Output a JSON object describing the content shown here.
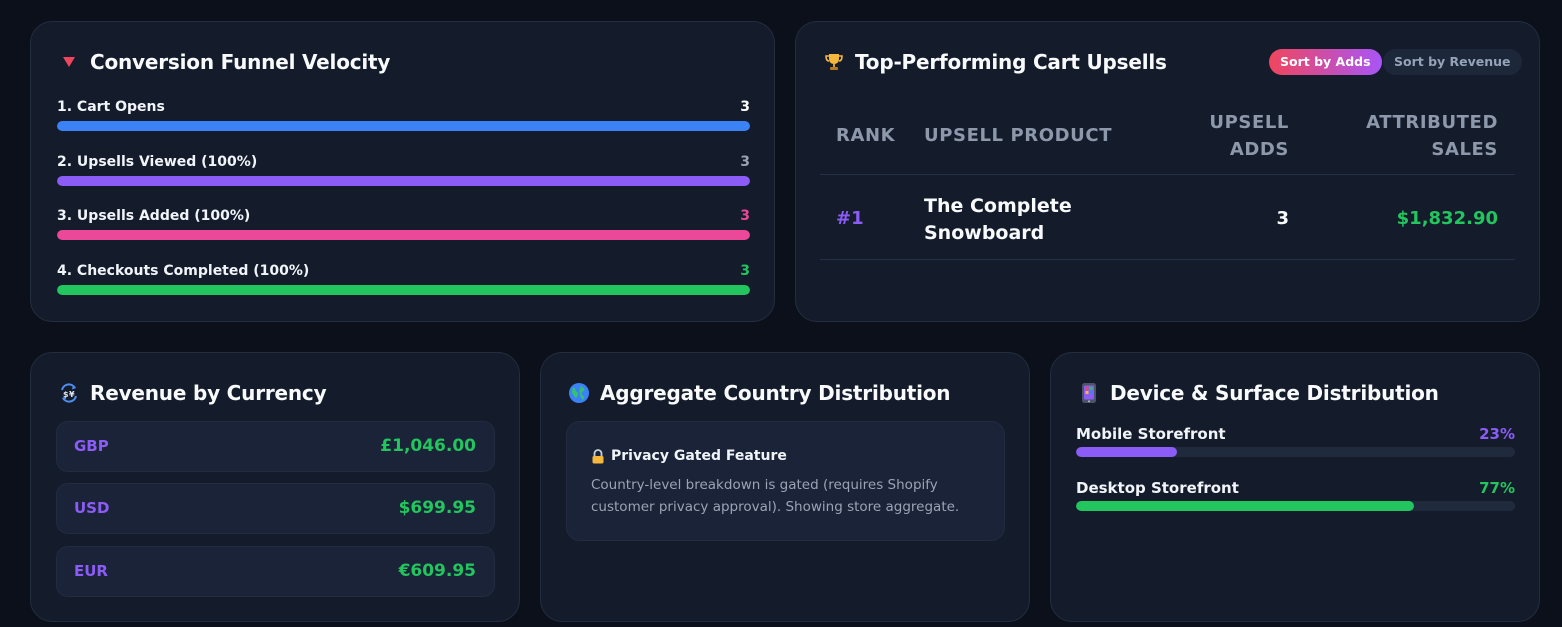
{
  "funnel": {
    "title": "Conversion Funnel Velocity",
    "icon": "triangle-down-icon",
    "steps": [
      {
        "label": "1. Cart Opens",
        "value": "3",
        "fill_fraction": 1.0,
        "color": "#3b82f6",
        "value_color": "#ffffff"
      },
      {
        "label": "2. Upsells Viewed (100%)",
        "value": "3",
        "fill_fraction": 1.0,
        "color": "#8b5cf6",
        "value_color": "#9ca3af"
      },
      {
        "label": "3. Upsells Added (100%)",
        "value": "3",
        "fill_fraction": 1.0,
        "color": "#ec4899",
        "value_color": "#ec4899"
      },
      {
        "label": "4. Checkouts Completed (100%)",
        "value": "3",
        "fill_fraction": 1.0,
        "color": "#22c55e",
        "value_color": "#22c55e"
      }
    ]
  },
  "upsells": {
    "title": "Top-Performing Cart Upsells",
    "icon": "trophy-icon",
    "sort_adds_label": "Sort by Adds",
    "sort_revenue_label": "Sort by Revenue",
    "columns": {
      "rank": "RANK",
      "product": "UPSELL PRODUCT",
      "adds_line1": "UPSELL",
      "adds_line2": "ADDS",
      "sales_line1": "ATTRIBUTED",
      "sales_line2": "SALES"
    },
    "rows": [
      {
        "rank": "#1",
        "product_line1": "The Complete",
        "product_line2": "Snowboard",
        "adds": "3",
        "sales": "$1,832.90"
      }
    ]
  },
  "currency": {
    "title": "Revenue by Currency",
    "icon": "currency-exchange-icon",
    "rows": [
      {
        "code": "GBP",
        "amount": "£1,046.00"
      },
      {
        "code": "USD",
        "amount": "$699.95"
      },
      {
        "code": "EUR",
        "amount": "€609.95"
      }
    ]
  },
  "country": {
    "title": "Aggregate Country Distribution",
    "icon": "globe-icon",
    "gated_title": "Privacy Gated Feature",
    "gated_icon": "lock-icon",
    "gated_desc": "Country-level breakdown is gated (requires Shopify customer privacy approval). Showing store aggregate."
  },
  "device": {
    "title": "Device & Surface Distribution",
    "icon": "mobile-phone-icon",
    "rows": [
      {
        "label": "Mobile Storefront",
        "value": "23%",
        "fraction": 0.23,
        "color": "#8b5cf6"
      },
      {
        "label": "Desktop Storefront",
        "value": "77%",
        "fraction": 0.77,
        "color": "#22c55e"
      }
    ]
  },
  "colors": {
    "background": "#0b101a",
    "card": "#141c2c",
    "accent_purple": "#8b5cf6",
    "accent_green": "#22c55e"
  }
}
